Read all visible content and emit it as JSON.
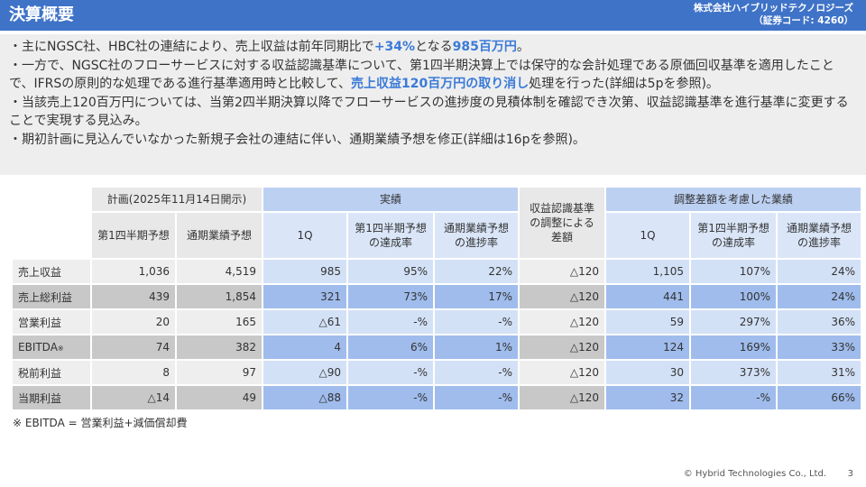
{
  "header": {
    "title": "決算概要",
    "company_line1": "株式会社ハイブリッドテクノロジーズ",
    "company_line2": "（証券コード: 4260）"
  },
  "summary": {
    "b1_pre": "・主にNGSC社、HBC社の連結により、売上収益は前年同期比で",
    "b1_hl1": "+34%",
    "b1_mid": "となる",
    "b1_hl2": "985百万円",
    "b1_post": "。",
    "b2_pre": "・一方で、NGSC社のフローサービスに対する収益認識基準について、第1四半期決算上では保守的な会計処理である原価回収基準を適用したことで、IFRSの原則的な処理である進行基準適用時と比較して、",
    "b2_hl": "売上収益120百万円の取り消し",
    "b2_post": "処理を行った(詳細は5pを参照)。",
    "b3": "・当該売上120百万円については、当第2四半期決算以降でフローサービスの進捗度の見積体制を確認でき次第、収益認識基準を進行基準に変更することで実現する見込み。",
    "b4": "・期初計画に見込んでいなかった新規子会社の連結に伴い、通期業績予想を修正(詳細は16pを参照)。"
  },
  "table": {
    "group_plan": "計画(2025年11月14日開示)",
    "group_actual": "実績",
    "group_adjust": "収益認識基準の調整による差額",
    "group_adjusted": "調整差額を考慮した業績",
    "col_plan_q2": "第1四半期予想",
    "col_plan_fy": "通期業績予想",
    "col_act_1q": "1Q",
    "col_act_q2rate": "第1四半期予想の達成率",
    "col_act_fyrate": "通期業績予想の進捗率",
    "col_adj_1q": "1Q",
    "col_adj_q2rate": "第1四半期予想の達成率",
    "col_adj_fyrate": "通期業績予想の進捗率",
    "rows": [
      {
        "label": "売上収益",
        "mark": "",
        "plan_q": "1,036",
        "plan_fy": "4,519",
        "act": "985",
        "act_q": "95%",
        "act_fy": "22%",
        "adj": "△120",
        "adj_act": "1,105",
        "adj_q": "107%",
        "adj_fy": "24%"
      },
      {
        "label": "売上総利益",
        "mark": "",
        "plan_q": "439",
        "plan_fy": "1,854",
        "act": "321",
        "act_q": "73%",
        "act_fy": "17%",
        "adj": "△120",
        "adj_act": "441",
        "adj_q": "100%",
        "adj_fy": "24%"
      },
      {
        "label": "営業利益",
        "mark": "",
        "plan_q": "20",
        "plan_fy": "165",
        "act": "△61",
        "act_q": "-%",
        "act_fy": "-%",
        "adj": "△120",
        "adj_act": "59",
        "adj_q": "297%",
        "adj_fy": "36%"
      },
      {
        "label": "EBITDA",
        "mark": "※",
        "plan_q": "74",
        "plan_fy": "382",
        "act": "4",
        "act_q": "6%",
        "act_fy": "1%",
        "adj": "△120",
        "adj_act": "124",
        "adj_q": "169%",
        "adj_fy": "33%"
      },
      {
        "label": "税前利益",
        "mark": "",
        "plan_q": "8",
        "plan_fy": "97",
        "act": "△90",
        "act_q": "-%",
        "act_fy": "-%",
        "adj": "△120",
        "adj_act": "30",
        "adj_q": "373%",
        "adj_fy": "31%"
      },
      {
        "label": "当期利益",
        "mark": "",
        "plan_q": "△14",
        "plan_fy": "49",
        "act": "△88",
        "act_q": "-%",
        "act_fy": "-%",
        "adj": "△120",
        "adj_act": "32",
        "adj_q": "-%",
        "adj_fy": "66%"
      }
    ]
  },
  "footnote": "※ EBITDA = 営業利益+減価償却費",
  "footer": {
    "copyright": "© Hybrid Technologies Co., Ltd.",
    "page": "3"
  }
}
